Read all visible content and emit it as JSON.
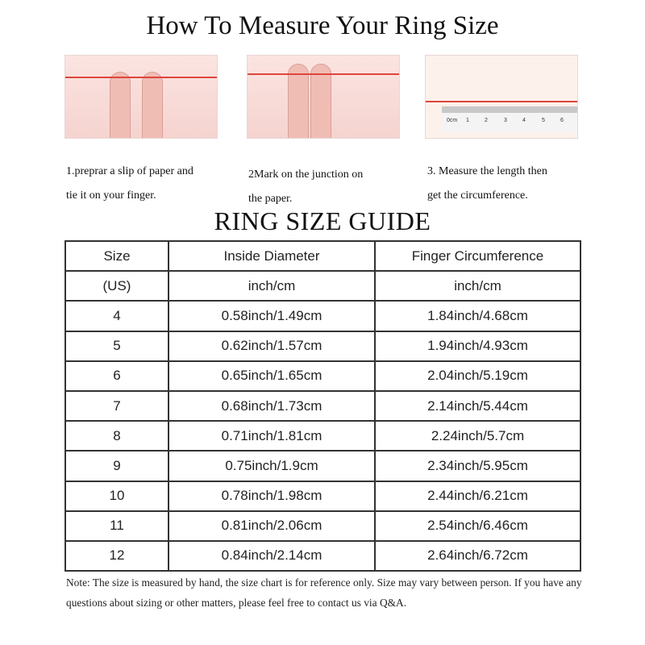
{
  "title": "How To Measure Your Ring Size",
  "steps": [
    {
      "lines": [
        "1.preprar a slip of paper and",
        "tie it on your finger."
      ]
    },
    {
      "lines": [
        "2Mark on the  junction on",
        "the paper."
      ]
    },
    {
      "lines": [
        "3. Measure the length then",
        "get the circumference."
      ]
    }
  ],
  "ruler_labels": [
    "0cm",
    "1",
    "2",
    "3",
    "4",
    "5",
    "6"
  ],
  "guide_title": "RING SIZE  GUIDE",
  "table": {
    "header": [
      "Size",
      "Inside Diameter",
      "Finger Circumference"
    ],
    "units": [
      "(US)",
      "inch/cm",
      "inch/cm"
    ],
    "rows": [
      [
        "4",
        "0.58inch/1.49cm",
        "1.84inch/4.68cm"
      ],
      [
        "5",
        "0.62inch/1.57cm",
        "1.94inch/4.93cm"
      ],
      [
        "6",
        "0.65inch/1.65cm",
        "2.04inch/5.19cm"
      ],
      [
        "7",
        "0.68inch/1.73cm",
        "2.14inch/5.44cm"
      ],
      [
        "8",
        "0.71inch/1.81cm",
        "2.24inch/5.7cm"
      ],
      [
        "9",
        "0.75inch/1.9cm",
        "2.34inch/5.95cm"
      ],
      [
        "10",
        "0.78inch/1.98cm",
        "2.44inch/6.21cm"
      ],
      [
        "11",
        "0.81inch/2.06cm",
        "2.54inch/6.46cm"
      ],
      [
        "12",
        "0.84inch/2.14cm",
        "2.64inch/6.72cm"
      ]
    ]
  },
  "note": "Note: The size is measured by hand, the size chart is for reference only. Size may vary between person. If you have any questions about sizing or other matters, please feel free to contact us via Q&A."
}
